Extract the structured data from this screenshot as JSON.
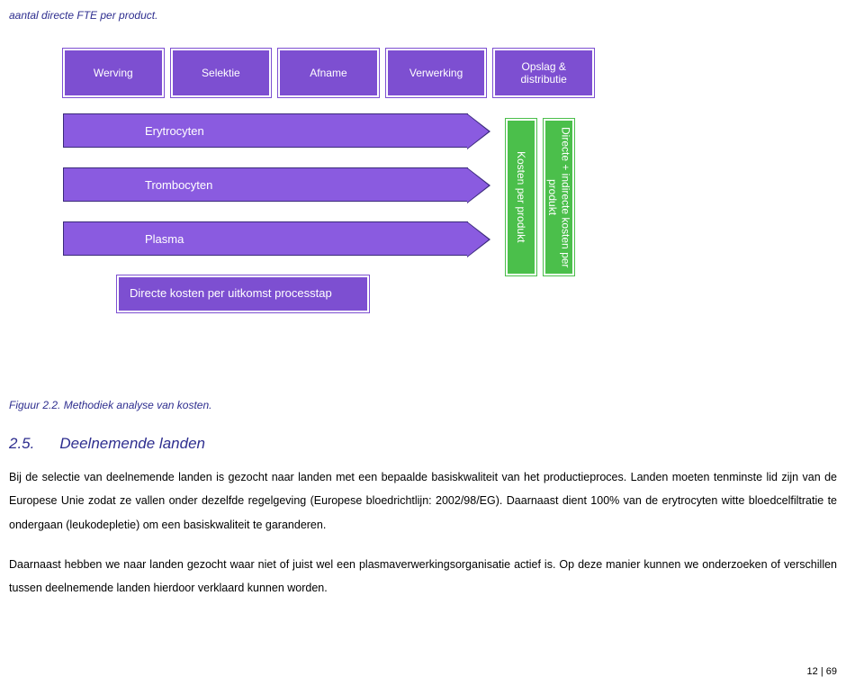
{
  "top_line": "aantal directe FTE per product.",
  "diagram": {
    "stages": [
      "Werving",
      "Selektie",
      "Afname",
      "Verwerking",
      "Opslag & distributie"
    ],
    "stage_bg": "#7d4fd1",
    "stage_text_color": "#ffffff",
    "arrows": [
      {
        "label": "Erytrocyten"
      },
      {
        "label": "Trombocyten"
      },
      {
        "label": "Plasma"
      }
    ],
    "arrow_bg": "#8a5be0",
    "arrow_border": "#3a2a7a",
    "bottom_box": "Directe kosten per uitkomst processtap",
    "side_bars": [
      {
        "label": "Kosten per produkt"
      },
      {
        "label": "Directe + indirecte kosten per produkt"
      }
    ],
    "side_bar_bg": "#4bbf4b"
  },
  "figure_caption": "Figuur 2.2. Methodiek analyse van kosten.",
  "section": {
    "number": "2.5.",
    "title": "Deelnemende landen"
  },
  "paragraphs": [
    "Bij de selectie van deelnemende landen is gezocht naar landen met een bepaalde basiskwaliteit van het productieproces. Landen moeten tenminste lid zijn van de Europese Unie zodat ze vallen onder dezelfde regelgeving (Europese bloedrichtlijn: 2002/98/EG). Daarnaast dient 100% van de erytrocyten witte bloedcelfiltratie te ondergaan (leukodepletie) om een basiskwaliteit te garanderen.",
    "Daarnaast hebben we naar landen gezocht waar niet of juist wel een plasmaverwerkingsorganisatie actief is. Op deze manier kunnen we onderzoeken of verschillen tussen deelnemende landen hierdoor verklaard kunnen worden."
  ],
  "page_number": "12 | 69",
  "colors": {
    "heading": "#2e2e8f",
    "body_text": "#000000",
    "background": "#ffffff"
  }
}
